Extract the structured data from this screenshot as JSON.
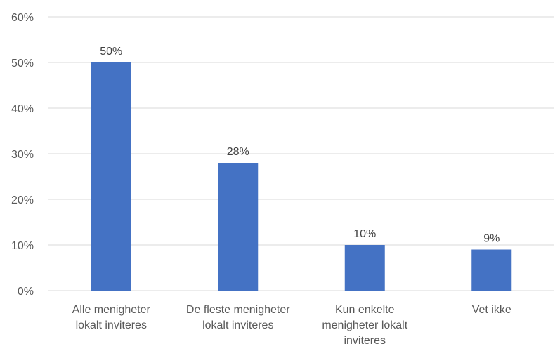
{
  "chart_data": {
    "type": "bar",
    "categories": [
      [
        "Alle menigheter",
        "lokalt inviteres"
      ],
      [
        "De fleste menigheter",
        "lokalt inviteres"
      ],
      [
        "Kun enkelte",
        "menigheter lokalt",
        "inviteres"
      ],
      [
        "Vet ikke"
      ]
    ],
    "values": [
      50,
      28,
      10,
      9
    ],
    "data_labels": [
      "50%",
      "28%",
      "10%",
      "9%"
    ],
    "title": "",
    "xlabel": "",
    "ylabel": "",
    "ylim": [
      0,
      60
    ],
    "yticks": [
      0,
      10,
      20,
      30,
      40,
      50,
      60
    ],
    "ytick_labels": [
      "0%",
      "10%",
      "20%",
      "30%",
      "40%",
      "50%",
      "60%"
    ],
    "grid": true,
    "legend": "none",
    "bar_color": "#4472c4"
  }
}
